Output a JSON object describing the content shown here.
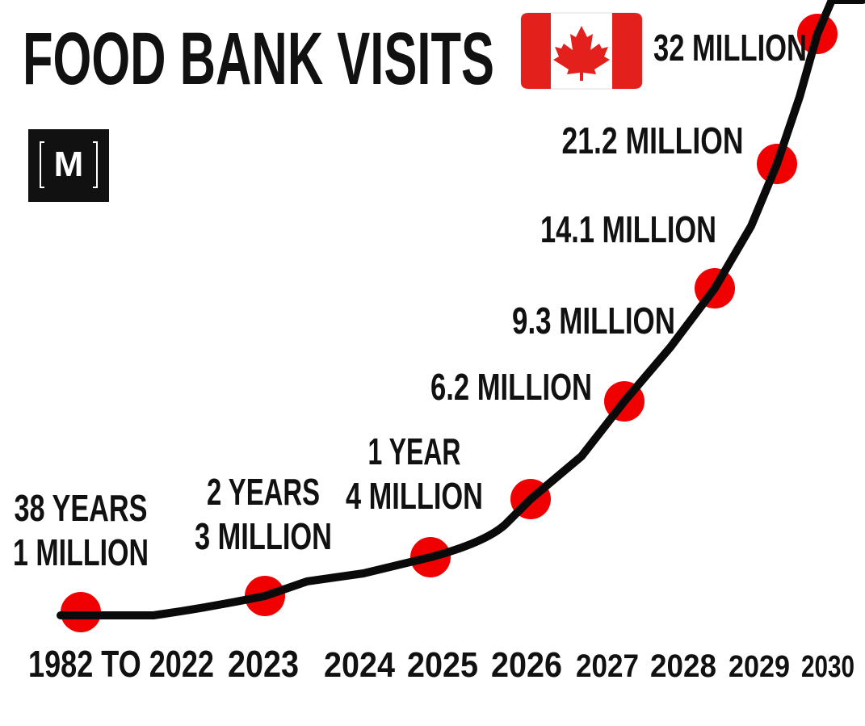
{
  "title": "FOOD BANK VISITS",
  "logo": "M",
  "annotations": [
    [
      "38 YEARS",
      "1 MILLION"
    ],
    [
      "2 YEARS",
      "3 MILLION"
    ],
    [
      "1 YEAR",
      "4 MILLION"
    ],
    [
      "6.2 MILLION"
    ],
    [
      "9.3 MILLION"
    ],
    [
      "14.1 MILLION"
    ],
    [
      "21.2 MILLION"
    ],
    [
      "32 MILLION"
    ]
  ],
  "x_labels": [
    "1982 TO 2022",
    "2023",
    "2024",
    "2025",
    "2026",
    "2027",
    "2028",
    "2029",
    "2030"
  ]
}
